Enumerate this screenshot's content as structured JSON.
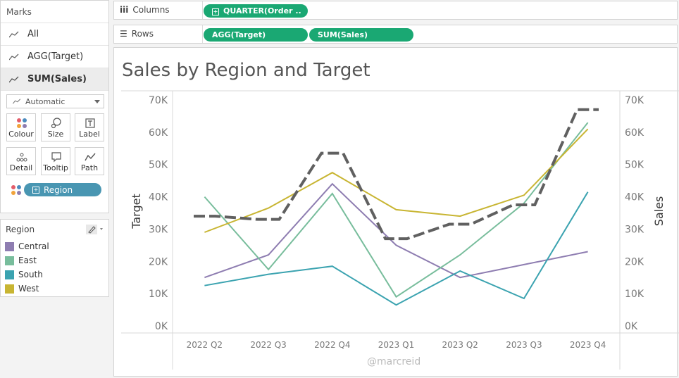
{
  "marks": {
    "title": "Marks",
    "items": [
      {
        "label": "All"
      },
      {
        "label": "AGG(Target)"
      },
      {
        "label": "SUM(Sales)"
      }
    ],
    "mark_type": "Automatic",
    "buttons": [
      {
        "label": "Colour",
        "icon": "colour-dots-icon"
      },
      {
        "label": "Size",
        "icon": "size-icon"
      },
      {
        "label": "Label",
        "icon": "label-icon"
      },
      {
        "label": "Detail",
        "icon": "detail-icon"
      },
      {
        "label": "Tooltip",
        "icon": "tooltip-icon"
      },
      {
        "label": "Path",
        "icon": "path-icon"
      }
    ],
    "color_field": "Region"
  },
  "legend": {
    "title": "Region",
    "items": [
      {
        "label": "Central",
        "color": "#8e7db1"
      },
      {
        "label": "East",
        "color": "#78bd9c"
      },
      {
        "label": "South",
        "color": "#3ba3b0"
      },
      {
        "label": "West",
        "color": "#c8b532"
      }
    ]
  },
  "shelves": {
    "columns_label": "Columns",
    "columns_pills": [
      "QUARTER(Order .."
    ],
    "rows_label": "Rows",
    "rows_pills": [
      "AGG(Target)",
      "SUM(Sales)"
    ]
  },
  "watermark": "@marcreid",
  "chart_data": {
    "type": "line",
    "title": "Sales by Region and Target",
    "categories": [
      "2022 Q2",
      "2022 Q3",
      "2022 Q4",
      "2023 Q1",
      "2023 Q2",
      "2023 Q3",
      "2023 Q4"
    ],
    "left_axis": {
      "label": "Target",
      "range": [
        0,
        70000
      ],
      "ticks": [
        "0K",
        "10K",
        "20K",
        "30K",
        "40K",
        "50K",
        "60K",
        "70K"
      ]
    },
    "right_axis": {
      "label": "Sales",
      "range": [
        0,
        70000
      ],
      "ticks": [
        "0K",
        "10K",
        "20K",
        "30K",
        "40K",
        "50K",
        "60K",
        "70K"
      ]
    },
    "target": {
      "step": true,
      "color": "#606060",
      "values": [
        34000,
        33000,
        53500,
        27000,
        31500,
        37500,
        67000
      ]
    },
    "series": [
      {
        "name": "Central",
        "color": "#8e7db1",
        "values": [
          15000,
          22000,
          44000,
          25000,
          15000,
          19000,
          23000
        ]
      },
      {
        "name": "East",
        "color": "#78bd9c",
        "values": [
          40000,
          17500,
          41000,
          9000,
          22000,
          38000,
          63000
        ]
      },
      {
        "name": "South",
        "color": "#3ba3b0",
        "values": [
          12500,
          16000,
          18500,
          6500,
          17000,
          8500,
          41500
        ]
      },
      {
        "name": "West",
        "color": "#c8b532",
        "values": [
          29000,
          36500,
          47500,
          36000,
          34000,
          40500,
          61000
        ]
      }
    ],
    "grid": false,
    "legend_position": "left"
  }
}
